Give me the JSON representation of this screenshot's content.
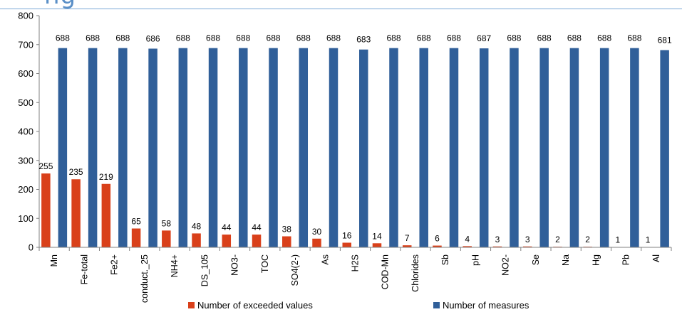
{
  "header": {
    "fragment_text": "ng"
  },
  "chart_data": {
    "type": "bar",
    "categories": [
      "Mn",
      "Fe-total",
      "Fe2+",
      "conduct._25",
      "NH4+",
      "DS_105",
      "NO3-",
      "TOC",
      "SO4(2-)",
      "As",
      "H2S",
      "COD-Mn",
      "Chlorides",
      "Sb",
      "pH",
      "NO2-",
      "Se",
      "Na",
      "Hg",
      "Pb",
      "Al"
    ],
    "series": [
      {
        "name": "Number of exceeded values",
        "color": "#d9401a",
        "values": [
          255,
          235,
          219,
          65,
          58,
          48,
          44,
          44,
          38,
          30,
          16,
          14,
          7,
          6,
          4,
          3,
          3,
          2,
          2,
          1,
          1
        ]
      },
      {
        "name": "Number of measures",
        "color": "#305f99",
        "values": [
          688,
          688,
          688,
          686,
          688,
          688,
          688,
          688,
          688,
          688,
          683,
          688,
          688,
          688,
          687,
          688,
          688,
          688,
          688,
          688,
          681
        ]
      }
    ],
    "ylim": [
      0,
      800
    ],
    "yticks": [
      0,
      100,
      200,
      300,
      400,
      500,
      600,
      700,
      800
    ],
    "grid": false,
    "legend_position": "bottom"
  }
}
